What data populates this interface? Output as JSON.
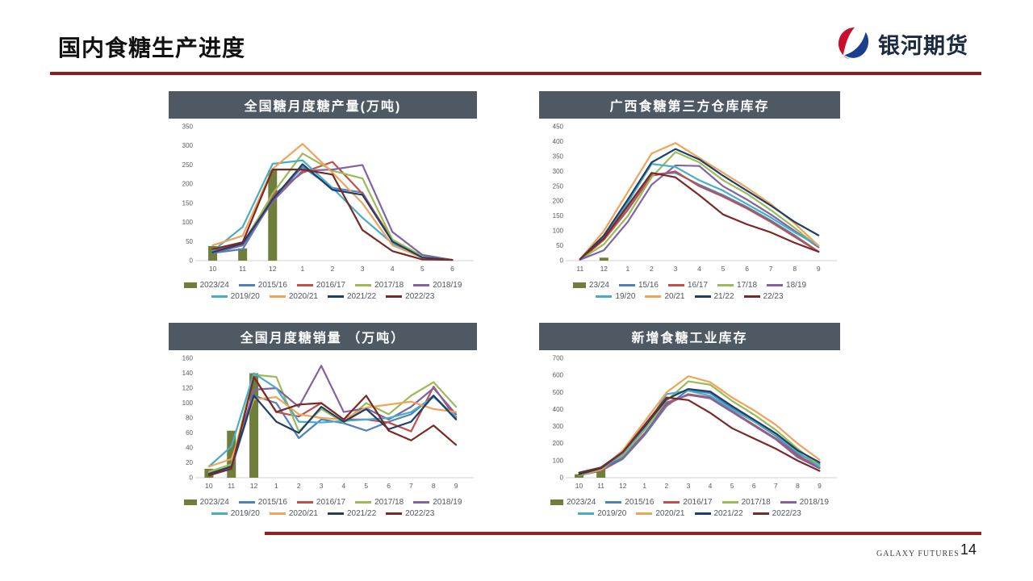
{
  "page": {
    "title": "国内食糖生产进度",
    "logo": {
      "text": "银河期货",
      "red": "#C8102E",
      "blue": "#1B3F8F"
    },
    "footer": {
      "brand": "GALAXY FUTURES",
      "page_number": "14"
    },
    "colors": {
      "accent_rule": "#8F1D1D",
      "footer_rule": "#9E1B1B",
      "panel_header_bg": "#4E5964",
      "axis_line": "#D9D9D9",
      "tick_text": "#595959"
    }
  },
  "chart_data": [
    {
      "type": "line",
      "title": "全国糖月度糖产量(万吨)",
      "xlabel": "",
      "ylabel": "",
      "grid": false,
      "legend_position": "bottom",
      "categories": [
        "10",
        "11",
        "12",
        "1",
        "2",
        "3",
        "4",
        "5",
        "6"
      ],
      "ylim": [
        0,
        350
      ],
      "yticks": [
        0,
        50,
        100,
        150,
        200,
        250,
        300,
        350
      ],
      "bar_series": {
        "name": "2023/24",
        "color": "#6F7E3B",
        "values": [
          38,
          32,
          236,
          null,
          null,
          null,
          null,
          null,
          null
        ]
      },
      "series": [
        {
          "name": "2015/16",
          "color": "#4F81BD",
          "values": [
            20,
            30,
            160,
            245,
            190,
            178,
            50,
            8,
            2
          ]
        },
        {
          "name": "2016/17",
          "color": "#C0504D",
          "values": [
            25,
            45,
            170,
            230,
            258,
            175,
            55,
            10,
            2
          ]
        },
        {
          "name": "2017/18",
          "color": "#9BBB59",
          "values": [
            22,
            40,
            175,
            280,
            235,
            215,
            55,
            12,
            2
          ]
        },
        {
          "name": "2018/19",
          "color": "#8064A2",
          "values": [
            20,
            40,
            155,
            235,
            238,
            250,
            75,
            15,
            2
          ]
        },
        {
          "name": "2019/20",
          "color": "#4BACC6",
          "values": [
            25,
            88,
            253,
            262,
            190,
            112,
            45,
            8,
            2
          ]
        },
        {
          "name": "2020/21",
          "color": "#EFA35B",
          "values": [
            40,
            65,
            240,
            305,
            230,
            150,
            40,
            8,
            2
          ]
        },
        {
          "name": "2021/22",
          "color": "#1F4066",
          "values": [
            22,
            45,
            160,
            252,
            185,
            172,
            50,
            8,
            2
          ]
        },
        {
          "name": "2022/23",
          "color": "#7A2A26",
          "values": [
            30,
            48,
            238,
            238,
            225,
            80,
            25,
            3,
            2
          ]
        }
      ]
    },
    {
      "type": "line",
      "title": "广西食糖第三方仓库库存",
      "xlabel": "",
      "ylabel": "",
      "grid": false,
      "legend_position": "bottom",
      "categories": [
        "11",
        "12",
        "1",
        "2",
        "3",
        "4",
        "5",
        "6",
        "7",
        "8",
        "9"
      ],
      "ylim": [
        0,
        450
      ],
      "yticks": [
        0,
        50,
        100,
        150,
        200,
        250,
        300,
        350,
        400,
        450
      ],
      "bar_series": {
        "name": "23/24",
        "color": "#6F7E3B",
        "values": [
          null,
          10,
          null,
          null,
          null,
          null,
          null,
          null,
          null,
          null,
          null
        ]
      },
      "series": [
        {
          "name": "15/16",
          "color": "#4F81BD",
          "values": [
            3,
            75,
            180,
            290,
            295,
            255,
            220,
            180,
            135,
            85,
            30
          ]
        },
        {
          "name": "16/17",
          "color": "#C0504D",
          "values": [
            3,
            70,
            170,
            285,
            300,
            250,
            215,
            175,
            130,
            80,
            30
          ]
        },
        {
          "name": "17/18",
          "color": "#9BBB59",
          "values": [
            3,
            55,
            150,
            280,
            365,
            330,
            270,
            225,
            170,
            110,
            45
          ]
        },
        {
          "name": "18/19",
          "color": "#8064A2",
          "values": [
            3,
            35,
            130,
            255,
            320,
            318,
            250,
            205,
            155,
            100,
            45
          ]
        },
        {
          "name": "19/20",
          "color": "#4BACC6",
          "values": [
            3,
            80,
            195,
            325,
            315,
            270,
            235,
            190,
            145,
            95,
            50
          ]
        },
        {
          "name": "20/21",
          "color": "#EFA35B",
          "values": [
            5,
            100,
            230,
            360,
            395,
            345,
            295,
            245,
            190,
            125,
            50
          ]
        },
        {
          "name": "21/22",
          "color": "#1F4066",
          "values": [
            5,
            85,
            205,
            330,
            375,
            340,
            285,
            235,
            185,
            130,
            85
          ]
        },
        {
          "name": "22/23",
          "color": "#7A2A26",
          "values": [
            5,
            75,
            185,
            295,
            280,
            220,
            155,
            122,
            95,
            60,
            30
          ]
        }
      ]
    },
    {
      "type": "line",
      "title": "全国月度糖销量 （万吨）",
      "xlabel": "",
      "ylabel": "",
      "grid": false,
      "legend_position": "bottom",
      "categories": [
        "10",
        "11",
        "12",
        "1",
        "2",
        "3",
        "4",
        "5",
        "6",
        "7",
        "8",
        "9"
      ],
      "ylim": [
        0,
        160
      ],
      "yticks": [
        0,
        20,
        40,
        60,
        80,
        100,
        120,
        140,
        160
      ],
      "bar_series": {
        "name": "2023/24",
        "color": "#6F7E3B",
        "values": [
          12,
          63,
          140,
          null,
          null,
          null,
          null,
          null,
          null,
          null,
          null,
          null
        ]
      },
      "series": [
        {
          "name": "2015/16",
          "color": "#4F81BD",
          "values": [
            5,
            12,
            110,
            100,
            53,
            78,
            73,
            63,
            75,
            85,
            110,
            80
          ]
        },
        {
          "name": "2016/17",
          "color": "#C0504D",
          "values": [
            6,
            15,
            135,
            88,
            82,
            100,
            78,
            78,
            74,
            62,
            122,
            80
          ]
        },
        {
          "name": "2017/18",
          "color": "#9BBB59",
          "values": [
            8,
            18,
            138,
            135,
            62,
            92,
            74,
            100,
            85,
            110,
            128,
            95
          ]
        },
        {
          "name": "2018/19",
          "color": "#8064A2",
          "values": [
            5,
            15,
            118,
            120,
            95,
            150,
            88,
            93,
            78,
            95,
            120,
            85
          ]
        },
        {
          "name": "2019/20",
          "color": "#4BACC6",
          "values": [
            15,
            42,
            140,
            120,
            75,
            74,
            76,
            78,
            80,
            88,
            108,
            82
          ]
        },
        {
          "name": "2020/21",
          "color": "#EFA35B",
          "values": [
            15,
            25,
            105,
            108,
            85,
            80,
            78,
            94,
            98,
            102,
            92,
            88
          ]
        },
        {
          "name": "2021/22",
          "color": "#1F4066",
          "values": [
            5,
            15,
            110,
            75,
            60,
            95,
            75,
            92,
            65,
            75,
            110,
            78
          ]
        },
        {
          "name": "2022/23",
          "color": "#7A2A26",
          "values": [
            3,
            12,
            135,
            88,
            98,
            100,
            78,
            110,
            63,
            50,
            70,
            44
          ]
        }
      ]
    },
    {
      "type": "line",
      "title": "新增食糖工业库存",
      "xlabel": "",
      "ylabel": "",
      "grid": false,
      "legend_position": "bottom",
      "categories": [
        "10",
        "11",
        "12",
        "1",
        "2",
        "3",
        "4",
        "5",
        "6",
        "7",
        "8",
        "9"
      ],
      "ylim": [
        0,
        700
      ],
      "yticks": [
        0,
        100,
        200,
        300,
        400,
        500,
        600,
        700
      ],
      "bar_series": {
        "name": "2023/24",
        "color": "#6F7E3B",
        "values": [
          20,
          48,
          null,
          null,
          null,
          null,
          null,
          null,
          null,
          null,
          null,
          null
        ]
      },
      "series": [
        {
          "name": "2015/16",
          "color": "#4F81BD",
          "values": [
            15,
            40,
            110,
            250,
            420,
            515,
            495,
            410,
            330,
            245,
            140,
            80
          ]
        },
        {
          "name": "2016/17",
          "color": "#C0504D",
          "values": [
            15,
            40,
            120,
            260,
            430,
            490,
            470,
            390,
            310,
            230,
            130,
            60
          ]
        },
        {
          "name": "2017/18",
          "color": "#9BBB59",
          "values": [
            15,
            45,
            130,
            280,
            450,
            565,
            545,
            450,
            370,
            280,
            170,
            70
          ]
        },
        {
          "name": "2018/19",
          "color": "#8064A2",
          "values": [
            20,
            55,
            115,
            255,
            440,
            485,
            465,
            385,
            305,
            225,
            120,
            55
          ]
        },
        {
          "name": "2019/20",
          "color": "#4BACC6",
          "values": [
            20,
            50,
            140,
            290,
            490,
            510,
            480,
            400,
            330,
            250,
            150,
            65
          ]
        },
        {
          "name": "2020/21",
          "color": "#EFA35B",
          "values": [
            20,
            50,
            160,
            330,
            500,
            595,
            560,
            470,
            395,
            310,
            200,
            105
          ]
        },
        {
          "name": "2021/22",
          "color": "#1F4066",
          "values": [
            20,
            55,
            150,
            300,
            460,
            520,
            505,
            420,
            340,
            260,
            160,
            90
          ]
        },
        {
          "name": "2022/23",
          "color": "#7A2A26",
          "values": [
            30,
            60,
            150,
            310,
            470,
            455,
            380,
            290,
            230,
            170,
            100,
            40
          ]
        }
      ]
    }
  ]
}
